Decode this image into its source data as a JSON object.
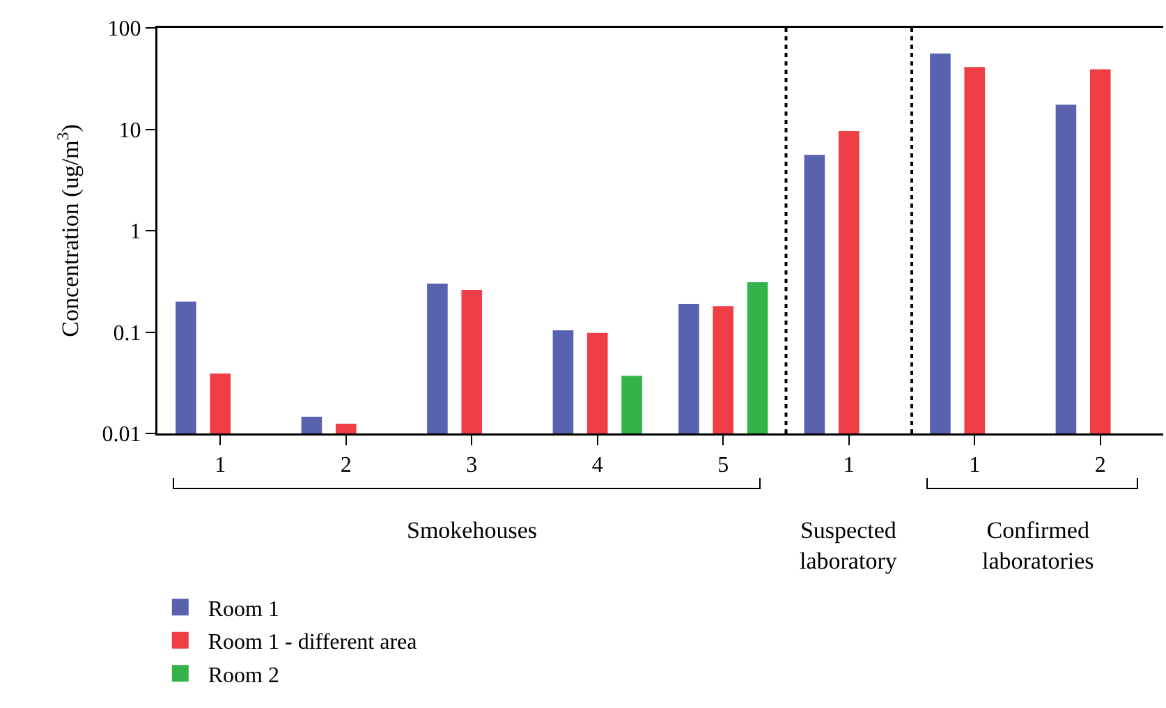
{
  "chart_data": {
    "type": "bar",
    "ylabel": "Concentration (ug/m$^{3}$)",
    "categories": [
      "1",
      "2",
      "3",
      "4",
      "5",
      "1",
      "1",
      "2"
    ],
    "series": [
      {
        "name": "Room 1",
        "color": "#5862ae",
        "values": [
          0.2,
          0.0146,
          0.3,
          0.104,
          0.19,
          5.6,
          56,
          17.5
        ]
      },
      {
        "name": "Room 1 - different area",
        "color": "#ef3e45",
        "values": [
          0.039,
          0.0125,
          0.26,
          0.098,
          0.18,
          9.6,
          41,
          39
        ]
      },
      {
        "name": "Room 2",
        "color": "#33b34a",
        "values": [
          null,
          null,
          null,
          0.037,
          0.31,
          null,
          null,
          null
        ]
      }
    ],
    "log": "y",
    "ylim": [
      0.01,
      100
    ],
    "yticks": [
      0.01,
      0.1,
      1,
      10,
      100
    ],
    "grid": false,
    "legend": "bottom left",
    "annotations": [
      "Smokehouses",
      "Suspected\nlaboratory",
      "Confirmed\nlaboratories"
    ]
  }
}
